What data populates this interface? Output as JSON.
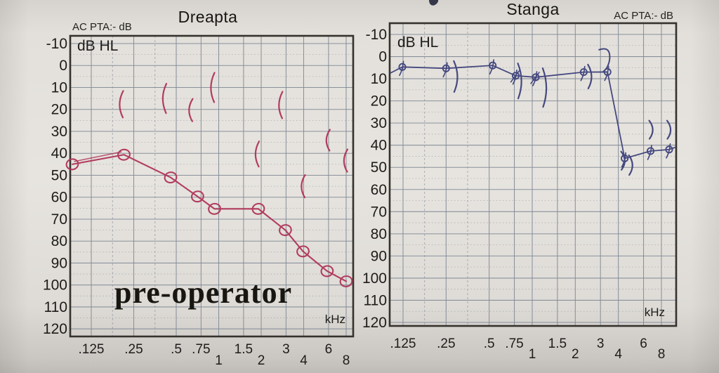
{
  "colors": {
    "paper": "#e4e1dc",
    "grid": "#858d98",
    "grid_dotted": "#9aa1ab",
    "border": "#35312c",
    "text": "#1d1c1a",
    "ink_dreapta": "#ae3156",
    "ink_stanga": "#3a3e78"
  },
  "chart_data": [
    {
      "type": "line",
      "ear": "right",
      "title": "Dreapta",
      "corner_label": "AC PTA:- dB",
      "ylabel": "dB HL",
      "xlabel": "kHz",
      "annotation": "pre-operator",
      "ink_color": "#ae3156",
      "x_scale": "log2",
      "grid": true,
      "x_ticks": [
        ".125",
        ".25",
        ".5",
        ".75",
        "1",
        "1.5",
        "2",
        "3",
        "4",
        "6",
        "8"
      ],
      "y_ticks": [
        -10,
        0,
        10,
        20,
        30,
        40,
        50,
        60,
        70,
        80,
        90,
        100,
        110,
        120
      ],
      "ylim": [
        -10,
        120
      ],
      "y_inverted": true,
      "series": [
        {
          "name": "air-conduction-threshold",
          "marker": "circle",
          "connected": true,
          "points": [
            [
              0.125,
              45
            ],
            [
              0.25,
              40
            ],
            [
              0.5,
              51
            ],
            [
              0.75,
              60
            ],
            [
              1,
              65
            ],
            [
              2,
              65
            ],
            [
              3,
              75
            ],
            [
              4,
              85
            ],
            [
              6,
              94
            ],
            [
              8,
              98
            ]
          ]
        },
        {
          "name": "paren-marks",
          "marker": "(",
          "connected": false,
          "points": [
            [
              0.25,
              17
            ],
            [
              0.5,
              15
            ],
            [
              0.75,
              20
            ],
            [
              1,
              10
            ],
            [
              2,
              40
            ],
            [
              3,
              18
            ],
            [
              4,
              55
            ],
            [
              6,
              34
            ],
            [
              8,
              43
            ]
          ]
        }
      ]
    },
    {
      "type": "line",
      "ear": "left",
      "title": "Stanga",
      "corner_label": "AC PTA:- dB",
      "ylabel": "dB HL",
      "xlabel": "kHz",
      "annotation": "",
      "ink_color": "#3a3e78",
      "x_scale": "log2",
      "grid": true,
      "x_ticks": [
        ".125",
        ".25",
        ".5",
        ".75",
        "1",
        "1.5",
        "2",
        "3",
        "4",
        "6",
        "8"
      ],
      "y_ticks": [
        -10,
        0,
        10,
        20,
        30,
        40,
        50,
        60,
        70,
        80,
        90,
        100,
        110,
        120
      ],
      "ylim": [
        -10,
        120
      ],
      "y_inverted": true,
      "series": [
        {
          "name": "air-conduction-threshold",
          "marker": "phi-circle",
          "connected": true,
          "points": [
            [
              0.125,
              5
            ],
            [
              0.25,
              5
            ],
            [
              0.5,
              4
            ],
            [
              0.75,
              8
            ],
            [
              1,
              9
            ],
            [
              2,
              7
            ],
            [
              3,
              6
            ],
            [
              4,
              45
            ],
            [
              6,
              42
            ],
            [
              8,
              41
            ]
          ]
        },
        {
          "name": "paren-marks",
          "marker": ")",
          "connected": false,
          "points": [
            [
              0.25,
              9
            ],
            [
              0.75,
              11
            ],
            [
              1,
              14
            ],
            [
              2,
              9
            ],
            [
              3,
              2
            ],
            [
              4,
              47
            ],
            [
              4,
              49
            ],
            [
              6,
              33
            ],
            [
              8,
              33
            ]
          ]
        }
      ]
    }
  ]
}
